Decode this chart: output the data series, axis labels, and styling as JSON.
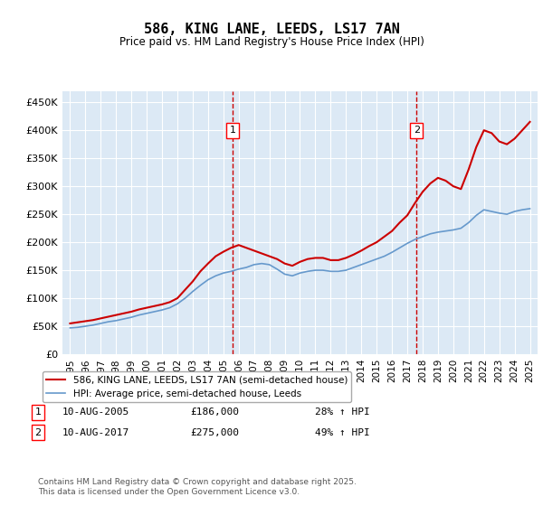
{
  "title": "586, KING LANE, LEEDS, LS17 7AN",
  "subtitle": "Price paid vs. HM Land Registry's House Price Index (HPI)",
  "ylabel_ticks": [
    "£0",
    "£50K",
    "£100K",
    "£150K",
    "£200K",
    "£250K",
    "£300K",
    "£350K",
    "£400K",
    "£450K"
  ],
  "ytick_values": [
    0,
    50000,
    100000,
    150000,
    200000,
    250000,
    300000,
    350000,
    400000,
    450000
  ],
  "ylim": [
    0,
    470000
  ],
  "xlim_start": 1994.5,
  "xlim_end": 2025.5,
  "xticks": [
    1995,
    1996,
    1997,
    1998,
    1999,
    2000,
    2001,
    2002,
    2003,
    2004,
    2005,
    2006,
    2007,
    2008,
    2009,
    2010,
    2011,
    2012,
    2013,
    2014,
    2015,
    2016,
    2017,
    2018,
    2019,
    2020,
    2021,
    2022,
    2023,
    2024,
    2025
  ],
  "bg_color": "#dce9f5",
  "grid_color": "#ffffff",
  "line1_color": "#cc0000",
  "line2_color": "#6699cc",
  "marker1": {
    "year": 2005.6,
    "value": 186000,
    "label": "1"
  },
  "marker2": {
    "year": 2017.6,
    "value": 275000,
    "label": "2"
  },
  "legend_line1": "586, KING LANE, LEEDS, LS17 7AN (semi-detached house)",
  "legend_line2": "HPI: Average price, semi-detached house, Leeds",
  "annotation1_date": "10-AUG-2005",
  "annotation1_price": "£186,000",
  "annotation1_hpi": "28% ↑ HPI",
  "annotation2_date": "10-AUG-2017",
  "annotation2_price": "£275,000",
  "annotation2_hpi": "49% ↑ HPI",
  "footer": "Contains HM Land Registry data © Crown copyright and database right 2025.\nThis data is licensed under the Open Government Licence v3.0.",
  "hpi_data": {
    "years": [
      1995.0,
      1995.5,
      1996.0,
      1996.5,
      1997.0,
      1997.5,
      1998.0,
      1998.5,
      1999.0,
      1999.5,
      2000.0,
      2000.5,
      2001.0,
      2001.5,
      2002.0,
      2002.5,
      2003.0,
      2003.5,
      2004.0,
      2004.5,
      2005.0,
      2005.5,
      2006.0,
      2006.5,
      2007.0,
      2007.5,
      2008.0,
      2008.5,
      2009.0,
      2009.5,
      2010.0,
      2010.5,
      2011.0,
      2011.5,
      2012.0,
      2012.5,
      2013.0,
      2013.5,
      2014.0,
      2014.5,
      2015.0,
      2015.5,
      2016.0,
      2016.5,
      2017.0,
      2017.5,
      2018.0,
      2018.5,
      2019.0,
      2019.5,
      2020.0,
      2020.5,
      2021.0,
      2021.5,
      2022.0,
      2022.5,
      2023.0,
      2023.5,
      2024.0,
      2024.5,
      2025.0
    ],
    "values": [
      47000,
      48000,
      50000,
      52000,
      55000,
      58000,
      60000,
      63000,
      66000,
      70000,
      73000,
      76000,
      79000,
      83000,
      90000,
      100000,
      112000,
      123000,
      133000,
      140000,
      145000,
      148000,
      152000,
      155000,
      160000,
      162000,
      160000,
      152000,
      143000,
      140000,
      145000,
      148000,
      150000,
      150000,
      148000,
      148000,
      150000,
      155000,
      160000,
      165000,
      170000,
      175000,
      182000,
      190000,
      198000,
      205000,
      210000,
      215000,
      218000,
      220000,
      222000,
      225000,
      235000,
      248000,
      258000,
      255000,
      252000,
      250000,
      255000,
      258000,
      260000
    ]
  },
  "price_data": {
    "years": [
      1995.0,
      1995.5,
      1996.0,
      1996.5,
      1997.0,
      1997.5,
      1998.0,
      1998.5,
      1999.0,
      1999.5,
      2000.0,
      2000.5,
      2001.0,
      2001.5,
      2002.0,
      2002.5,
      2003.0,
      2003.5,
      2004.0,
      2004.5,
      2005.0,
      2005.5,
      2006.0,
      2006.5,
      2007.0,
      2007.5,
      2008.0,
      2008.5,
      2009.0,
      2009.5,
      2010.0,
      2010.5,
      2011.0,
      2011.5,
      2012.0,
      2012.5,
      2013.0,
      2013.5,
      2014.0,
      2014.5,
      2015.0,
      2015.5,
      2016.0,
      2016.5,
      2017.0,
      2017.5,
      2018.0,
      2018.5,
      2019.0,
      2019.5,
      2020.0,
      2020.5,
      2021.0,
      2021.5,
      2022.0,
      2022.5,
      2023.0,
      2023.5,
      2024.0,
      2024.5,
      2025.0
    ],
    "values": [
      55000,
      57000,
      59000,
      61000,
      64000,
      67000,
      70000,
      73000,
      76000,
      80000,
      83000,
      86000,
      89000,
      93000,
      100000,
      115000,
      130000,
      148000,
      162000,
      175000,
      183000,
      190000,
      195000,
      190000,
      185000,
      180000,
      175000,
      170000,
      162000,
      158000,
      165000,
      170000,
      172000,
      172000,
      168000,
      168000,
      172000,
      178000,
      185000,
      193000,
      200000,
      210000,
      220000,
      235000,
      248000,
      270000,
      290000,
      305000,
      315000,
      310000,
      300000,
      295000,
      330000,
      370000,
      400000,
      395000,
      380000,
      375000,
      385000,
      400000,
      415000
    ]
  }
}
